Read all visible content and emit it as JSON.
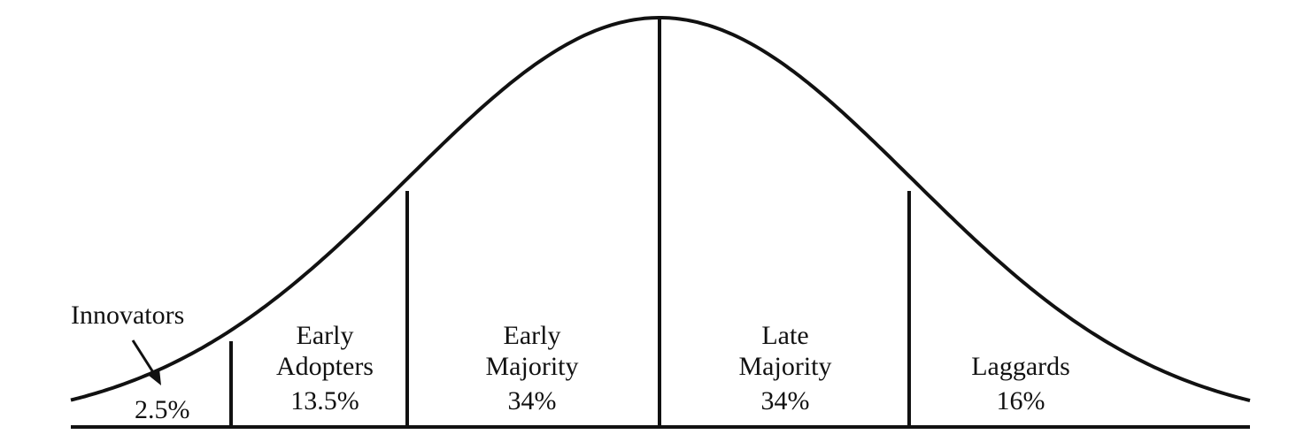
{
  "diagram": {
    "segments": [
      {
        "lines": [
          "Innovators"
        ],
        "percent": "2.5%",
        "share": 2.5
      },
      {
        "lines": [
          "Early",
          "Adopters"
        ],
        "percent": "13.5%",
        "share": 13.5
      },
      {
        "lines": [
          "Early",
          "Majority"
        ],
        "percent": "34%",
        "share": 34
      },
      {
        "lines": [
          "Late",
          "Majority"
        ],
        "percent": "34%",
        "share": 34
      },
      {
        "lines": [
          "Laggards"
        ],
        "percent": "16%",
        "share": 16
      }
    ],
    "colors": {
      "ink": "#111111",
      "background": "#ffffff"
    }
  }
}
